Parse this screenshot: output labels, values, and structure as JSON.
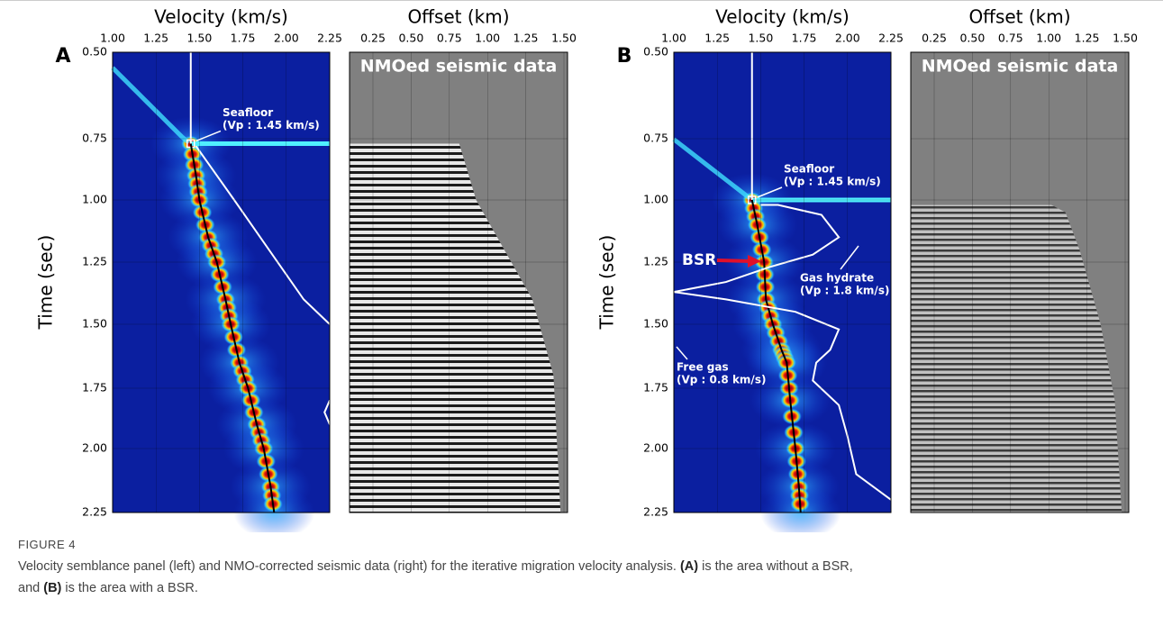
{
  "figure": {
    "panels": [
      {
        "label": "A",
        "velocity_axis": {
          "title": "Velocity (km/s)",
          "ticks": [
            "1.00",
            "1.25",
            "1.50",
            "1.75",
            "2.00",
            "2.25"
          ]
        },
        "offset_axis": {
          "title": "Offset (km)",
          "ticks": [
            "0.25",
            "0.50",
            "0.75",
            "1.00",
            "1.25",
            "1.50"
          ]
        },
        "time_axis": {
          "title": "Time (sec)",
          "ticks": [
            "0.50",
            "0.75",
            "1.00",
            "1.25",
            "1.50",
            "1.75",
            "2.00",
            "2.25"
          ]
        },
        "annotations": {
          "seafloor": "Seafloor",
          "seafloor_vp": "(Vp : 1.45 km/s)",
          "nmo": "NMOed seismic data"
        }
      },
      {
        "label": "B",
        "velocity_axis": {
          "title": "Velocity (km/s)",
          "ticks": [
            "1.00",
            "1.25",
            "1.50",
            "1.75",
            "2.00",
            "2.25"
          ]
        },
        "offset_axis": {
          "title": "Offset (km)",
          "ticks": [
            "0.25",
            "0.50",
            "0.75",
            "1.00",
            "1.25",
            "1.50"
          ]
        },
        "time_axis": {
          "title": "Time (sec)",
          "ticks": [
            "0.50",
            "0.75",
            "1.00",
            "1.25",
            "1.50",
            "1.75",
            "2.00",
            "2.25"
          ]
        },
        "annotations": {
          "seafloor": "Seafloor",
          "seafloor_vp": "(Vp : 1.45 km/s)",
          "nmo": "NMOed seismic data",
          "bsr": "BSR",
          "gas_hydrate": "Gas hydrate",
          "gas_hydrate_vp": "(Vp : 1.8 km/s)",
          "free_gas": "Free gas",
          "free_gas_vp": "(Vp : 0.8 km/s)"
        }
      }
    ],
    "caption": {
      "label": "FIGURE 4",
      "lines": [
        [
          "Velocity semblance panel (left) and NMO-corrected seismic data (right) for the iterative migration velocity analysis. ",
          "(A)",
          " is the area without a BSR,"
        ],
        [
          "and ",
          "(B)",
          " is the area with a BSR."
        ]
      ]
    }
  }
}
